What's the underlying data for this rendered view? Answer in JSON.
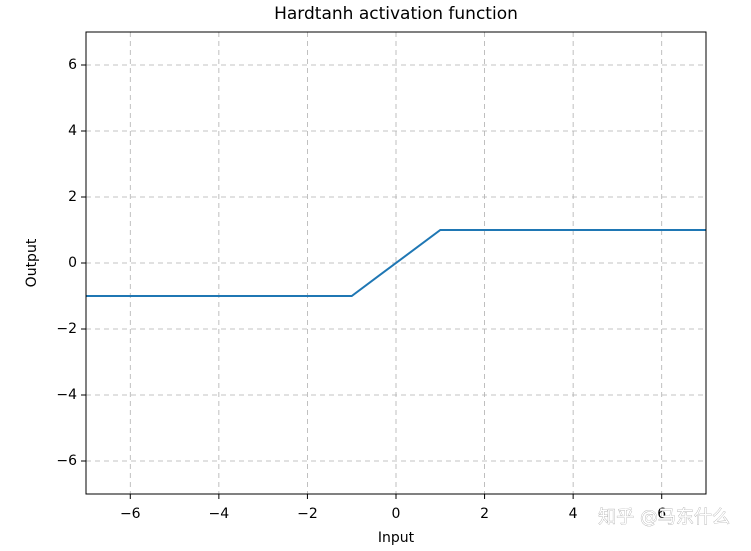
{
  "chart_data": {
    "type": "line",
    "title": "Hardtanh activation function",
    "x_label": "Input",
    "y_label": "Output",
    "x": [
      -7,
      -1,
      1,
      7
    ],
    "series": [
      {
        "name": "Hardtanh",
        "color": "#1f77b4",
        "values": [
          -1,
          -1,
          1,
          1
        ]
      }
    ],
    "xlim": [
      -7,
      7
    ],
    "ylim": [
      -7,
      7
    ],
    "xticks": [
      {
        "value": -6,
        "label": "−6"
      },
      {
        "value": -4,
        "label": "−4"
      },
      {
        "value": -2,
        "label": "−2"
      },
      0,
      2,
      4,
      6
    ],
    "yticks": [
      {
        "value": -6,
        "label": "−6"
      },
      {
        "value": -4,
        "label": "−4"
      },
      {
        "value": -2,
        "label": "−2"
      },
      0,
      2,
      4,
      6
    ],
    "grid": true,
    "watermark": "知乎 @马东什么"
  }
}
